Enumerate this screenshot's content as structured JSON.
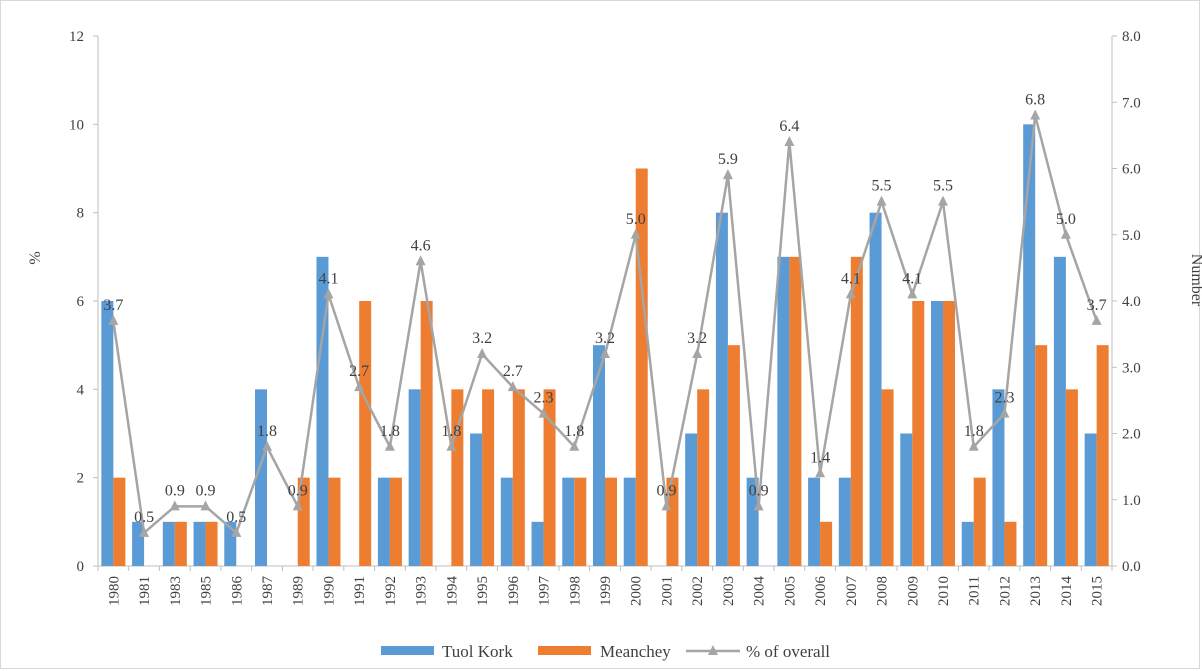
{
  "chart_data": {
    "type": "bar",
    "categories": [
      "1980",
      "1981",
      "1983",
      "1985",
      "1986",
      "1987",
      "1989",
      "1990",
      "1991",
      "1992",
      "1993",
      "1994",
      "1995",
      "1996",
      "1997",
      "1998",
      "1999",
      "2000",
      "2001",
      "2002",
      "2003",
      "2004",
      "2005",
      "2006",
      "2007",
      "2008",
      "2009",
      "2010",
      "2011",
      "2012",
      "2013",
      "2014",
      "2015"
    ],
    "series": [
      {
        "name": "Tuol Kork",
        "type": "bar",
        "axis": "left",
        "color": "#5b9bd5",
        "values": [
          6,
          1,
          1,
          1,
          1,
          4,
          0,
          7,
          0,
          2,
          4,
          0,
          3,
          2,
          1,
          2,
          5,
          2,
          0,
          3,
          8,
          2,
          7,
          2,
          2,
          8,
          3,
          6,
          1,
          4,
          10,
          7,
          3
        ]
      },
      {
        "name": "Meanchey",
        "type": "bar",
        "axis": "left",
        "color": "#ed7d31",
        "values": [
          2,
          0,
          1,
          1,
          0,
          0,
          2,
          2,
          6,
          2,
          6,
          4,
          4,
          4,
          4,
          2,
          2,
          9,
          2,
          4,
          5,
          0,
          7,
          1,
          7,
          4,
          6,
          6,
          2,
          1,
          5,
          4,
          5
        ]
      },
      {
        "name": "% of overall",
        "type": "line",
        "axis": "right",
        "color": "#a5a5a5",
        "values": [
          3.7,
          0.5,
          0.9,
          0.9,
          0.5,
          1.8,
          0.9,
          4.1,
          2.7,
          1.8,
          4.6,
          1.8,
          3.2,
          2.7,
          2.3,
          1.8,
          3.2,
          5.0,
          0.9,
          3.2,
          5.9,
          0.9,
          6.4,
          1.4,
          4.1,
          5.5,
          4.1,
          5.5,
          1.8,
          2.3,
          6.8,
          5.0,
          3.7
        ],
        "labels": [
          "3.7",
          "0.5",
          "0.9",
          "0.9",
          "0.5",
          "1.8",
          "0.9",
          "4.1",
          "2.7",
          "1.8",
          "4.6",
          "1.8",
          "3.2",
          "2.7",
          "2.3",
          "1.8",
          "3.2",
          "5.0",
          "0.9",
          "3.2",
          "5.9",
          "0.9",
          "6.4",
          "1.4",
          "4.1",
          "5.5",
          "4.1",
          "5.5",
          "1.8",
          "2.3",
          "6.8",
          "5.0",
          "3.7"
        ]
      }
    ],
    "ylabel": "%",
    "y2label": "Number",
    "ylim": [
      0,
      12
    ],
    "y2lim": [
      0,
      8
    ],
    "yticks": [
      "0",
      "2",
      "4",
      "6",
      "8",
      "10",
      "12"
    ],
    "y2ticks": [
      "0.0",
      "1.0",
      "2.0",
      "3.0",
      "4.0",
      "5.0",
      "6.0",
      "7.0",
      "8.0"
    ],
    "grid": false,
    "legend_position": "bottom"
  }
}
